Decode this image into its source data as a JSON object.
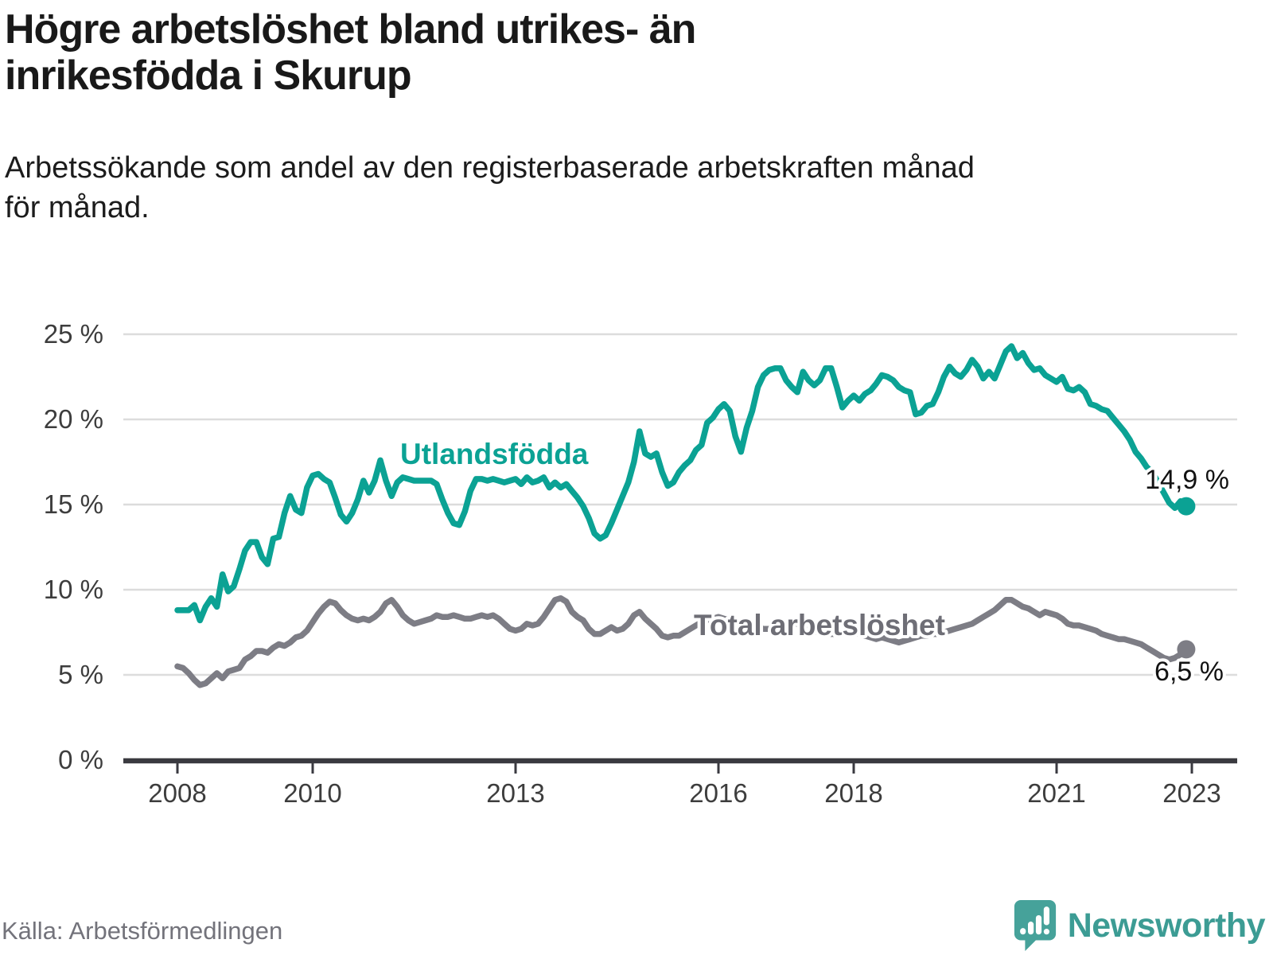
{
  "header": {
    "title_line1": "Högre arbetslöshet bland utrikes- än",
    "title_line2": "inrikesfödda i Skurup",
    "subtitle_line1": "Arbetssökande som andel av den registerbaserade arbetskraften månad",
    "subtitle_line2": "för månad."
  },
  "footer": {
    "source": "Källa: Arbetsförmedlingen",
    "brand": "Newsworthy"
  },
  "colors": {
    "accent_teal": "#0ba294",
    "line_gray": "#7d7d85",
    "label_gray": "#6e6e76",
    "axis": "#3a3a40",
    "tick_text": "#3d3d3d",
    "gridline": "#dcdcdc",
    "value_text": "#121212",
    "logo_teal": "#46a29a"
  },
  "chart_data": {
    "type": "line",
    "unit": "%",
    "frequency": "monthly",
    "x_start": "2008-01",
    "x_end": "2022-12",
    "ylim": [
      0,
      25
    ],
    "grid": true,
    "yticks": [
      {
        "value": 25,
        "label": "25 %"
      },
      {
        "value": 20,
        "label": "20 %"
      },
      {
        "value": 15,
        "label": "15 %"
      },
      {
        "value": 10,
        "label": "10 %"
      },
      {
        "value": 5,
        "label": "5 %"
      },
      {
        "value": 0,
        "label": "0 %"
      }
    ],
    "xticks": [
      {
        "value": 2008,
        "label": "2008"
      },
      {
        "value": 2010,
        "label": "2010"
      },
      {
        "value": 2013,
        "label": "2013"
      },
      {
        "value": 2016,
        "label": "2016"
      },
      {
        "value": 2018,
        "label": "2018"
      },
      {
        "value": 2021,
        "label": "2021"
      },
      {
        "value": 2023,
        "label": "2023"
      }
    ],
    "series": [
      {
        "name": "Utlandsfödda",
        "color": "#0ba294",
        "end_label": "14,9 %",
        "end_value": 14.9,
        "values": [
          8.8,
          8.8,
          8.8,
          9.1,
          8.2,
          9.0,
          9.5,
          9.0,
          10.9,
          9.9,
          10.2,
          11.2,
          12.3,
          12.8,
          12.8,
          11.9,
          11.5,
          13.0,
          13.1,
          14.5,
          15.5,
          14.7,
          14.5,
          16.0,
          16.7,
          16.8,
          16.5,
          16.3,
          15.4,
          14.4,
          14.0,
          14.5,
          15.3,
          16.4,
          15.7,
          16.4,
          17.6,
          16.4,
          15.5,
          16.3,
          16.6,
          16.5,
          16.4,
          16.4,
          16.4,
          16.4,
          16.2,
          15.3,
          14.5,
          13.9,
          13.8,
          14.6,
          15.8,
          16.5,
          16.5,
          16.4,
          16.5,
          16.4,
          16.3,
          16.4,
          16.5,
          16.2,
          16.6,
          16.3,
          16.4,
          16.6,
          16.0,
          16.3,
          16.0,
          16.2,
          15.8,
          15.4,
          14.9,
          14.2,
          13.3,
          13.0,
          13.2,
          13.9,
          14.7,
          15.5,
          16.3,
          17.5,
          19.3,
          18.0,
          17.8,
          18.0,
          16.9,
          16.1,
          16.3,
          16.9,
          17.3,
          17.6,
          18.2,
          18.5,
          19.8,
          20.1,
          20.6,
          20.9,
          20.5,
          19.0,
          18.1,
          19.5,
          20.5,
          21.9,
          22.6,
          22.9,
          23.0,
          23.0,
          22.3,
          21.9,
          21.6,
          22.8,
          22.3,
          22.0,
          22.3,
          23.0,
          23.0,
          21.9,
          20.7,
          21.1,
          21.4,
          21.1,
          21.5,
          21.7,
          22.1,
          22.6,
          22.5,
          22.3,
          21.9,
          21.7,
          21.6,
          20.3,
          20.4,
          20.8,
          20.9,
          21.6,
          22.5,
          23.1,
          22.7,
          22.5,
          22.9,
          23.5,
          23.1,
          22.4,
          22.8,
          22.4,
          23.2,
          24.0,
          24.3,
          23.6,
          23.9,
          23.3,
          22.9,
          23.0,
          22.6,
          22.4,
          22.2,
          22.5,
          21.8,
          21.7,
          21.9,
          21.6,
          20.9,
          20.8,
          20.6,
          20.5,
          20.1,
          19.7,
          19.3,
          18.8,
          18.1,
          17.7,
          17.2,
          16.9,
          16.3,
          15.7,
          15.1,
          14.8,
          15.2,
          14.9
        ]
      },
      {
        "name": "Total arbetslöshet",
        "color": "#7d7d85",
        "end_label": "6,5 %",
        "end_value": 6.5,
        "values": [
          5.5,
          5.4,
          5.1,
          4.7,
          4.4,
          4.5,
          4.8,
          5.1,
          4.8,
          5.2,
          5.3,
          5.4,
          5.9,
          6.1,
          6.4,
          6.4,
          6.3,
          6.6,
          6.8,
          6.7,
          6.9,
          7.2,
          7.3,
          7.6,
          8.1,
          8.6,
          9.0,
          9.3,
          9.2,
          8.8,
          8.5,
          8.3,
          8.2,
          8.3,
          8.2,
          8.4,
          8.7,
          9.2,
          9.4,
          9.0,
          8.5,
          8.2,
          8.0,
          8.1,
          8.2,
          8.3,
          8.5,
          8.4,
          8.4,
          8.5,
          8.4,
          8.3,
          8.3,
          8.4,
          8.5,
          8.4,
          8.5,
          8.3,
          8.0,
          7.7,
          7.6,
          7.7,
          8.0,
          7.9,
          8.0,
          8.4,
          8.9,
          9.4,
          9.5,
          9.3,
          8.7,
          8.4,
          8.2,
          7.7,
          7.4,
          7.4,
          7.6,
          7.8,
          7.6,
          7.7,
          8.0,
          8.5,
          8.7,
          8.3,
          8.0,
          7.7,
          7.3,
          7.2,
          7.3,
          7.3,
          7.5,
          7.7,
          7.9,
          8.1,
          8.2,
          8.3,
          8.4,
          8.3,
          8.2,
          8.0,
          7.9,
          7.8,
          7.9,
          7.8,
          7.7,
          7.7,
          7.8,
          7.9,
          8.0,
          8.1,
          8.0,
          7.8,
          7.6,
          7.5,
          7.6,
          7.5,
          7.4,
          7.4,
          7.5,
          7.5,
          7.5,
          7.4,
          7.3,
          7.2,
          7.1,
          7.2,
          7.1,
          7.0,
          6.9,
          7.0,
          7.1,
          7.2,
          7.3,
          7.3,
          7.4,
          7.4,
          7.5,
          7.6,
          7.7,
          7.8,
          7.9,
          8.0,
          8.2,
          8.4,
          8.6,
          8.8,
          9.1,
          9.4,
          9.4,
          9.2,
          9.0,
          8.9,
          8.7,
          8.5,
          8.7,
          8.6,
          8.5,
          8.3,
          8.0,
          7.9,
          7.9,
          7.8,
          7.7,
          7.6,
          7.4,
          7.3,
          7.2,
          7.1,
          7.1,
          7.0,
          6.9,
          6.8,
          6.6,
          6.4,
          6.2,
          6.0,
          5.9,
          6.0,
          6.2,
          6.5
        ]
      }
    ]
  }
}
